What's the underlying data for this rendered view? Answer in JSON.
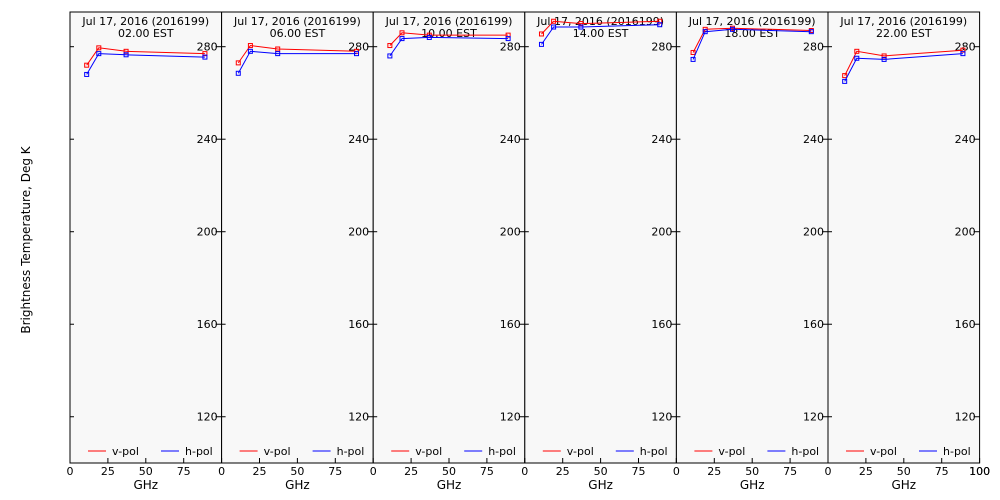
{
  "chart_data": {
    "type": "line",
    "ylabel": "Brightness Temperature, Deg K",
    "xlabel": "GHz",
    "xlim": [
      0,
      100
    ],
    "ylim": [
      100,
      295
    ],
    "xticks": [
      0,
      25,
      50,
      75,
      100
    ],
    "yticks": [
      120,
      160,
      200,
      240,
      280
    ],
    "grid": false,
    "legend_placement": "bottom",
    "colors": {
      "v-pol": "#ff0000",
      "h-pol": "#0000ff"
    },
    "legend": [
      {
        "name": "v-pol",
        "color": "#ff0000"
      },
      {
        "name": "h-pol",
        "color": "#0000ff"
      }
    ],
    "x": [
      11,
      19,
      37,
      89
    ],
    "panels": [
      {
        "title_line1": "Jul 17, 2016 (2016199)",
        "title_line2": "02.00 EST",
        "series": [
          {
            "name": "v-pol",
            "values": [
              272,
              279.5,
              278,
              277
            ]
          },
          {
            "name": "h-pol",
            "values": [
              268,
              277,
              276.5,
              275.5
            ]
          }
        ]
      },
      {
        "title_line1": "Jul 17, 2016 (2016199)",
        "title_line2": "06.00 EST",
        "series": [
          {
            "name": "v-pol",
            "values": [
              273,
              280.5,
              279,
              278
            ]
          },
          {
            "name": "h-pol",
            "values": [
              268.5,
              278,
              277,
              277
            ]
          }
        ]
      },
      {
        "title_line1": "Jul 17, 2016 (2016199)",
        "title_line2": "10.00 EST",
        "series": [
          {
            "name": "v-pol",
            "values": [
              280.5,
              286,
              285,
              285
            ]
          },
          {
            "name": "h-pol",
            "values": [
              276,
              283.5,
              284,
              283.5
            ]
          }
        ]
      },
      {
        "title_line1": "Jul 17, 2016 (2016199)",
        "title_line2": "14.00 EST",
        "series": [
          {
            "name": "v-pol",
            "values": [
              285.5,
              291,
              290,
              291
            ]
          },
          {
            "name": "h-pol",
            "values": [
              281,
              288.5,
              288.5,
              289.5
            ]
          }
        ]
      },
      {
        "title_line1": "Jul 17, 2016 (2016199)",
        "title_line2": "18.00 EST",
        "series": [
          {
            "name": "v-pol",
            "values": [
              277.5,
              287.5,
              288,
              287
            ]
          },
          {
            "name": "h-pol",
            "values": [
              274.5,
              286.5,
              287.5,
              286.5
            ]
          }
        ]
      },
      {
        "title_line1": "Jul 17, 2016 (2016199)",
        "title_line2": "22.00 EST",
        "series": [
          {
            "name": "v-pol",
            "values": [
              267.5,
              278,
              276,
              278.5
            ]
          },
          {
            "name": "h-pol",
            "values": [
              265,
              275,
              274.5,
              277
            ]
          }
        ]
      }
    ]
  }
}
